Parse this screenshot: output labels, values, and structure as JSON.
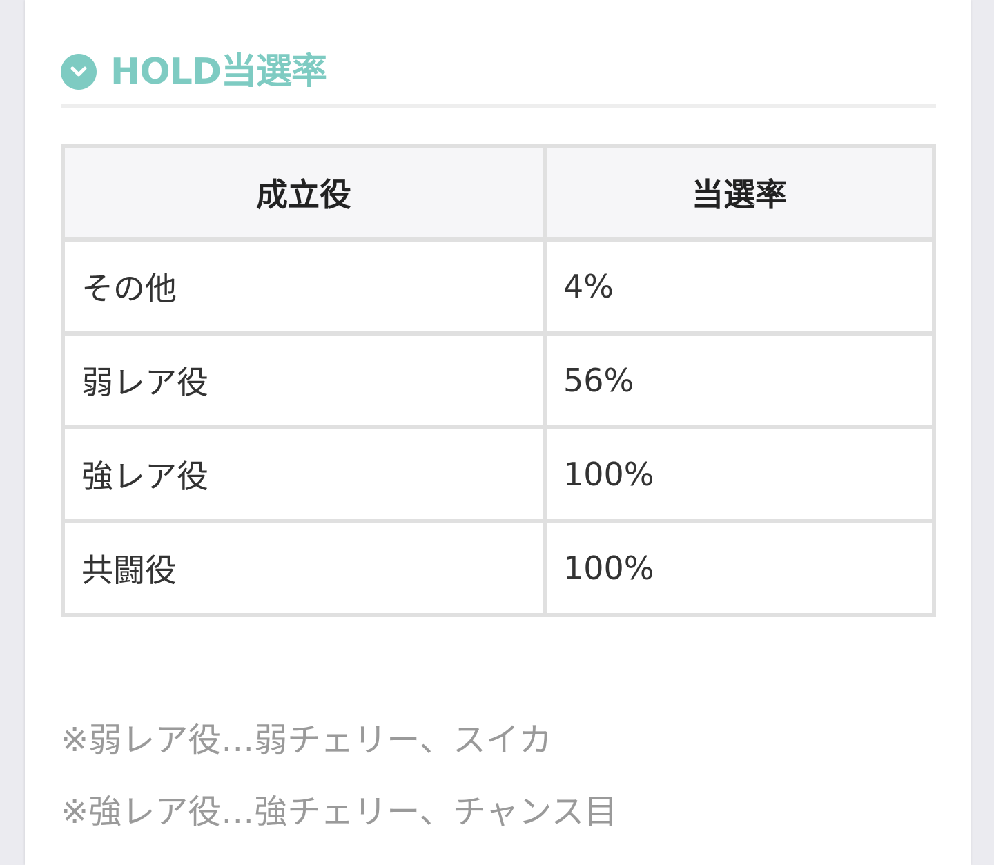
{
  "colors": {
    "accent": "#7ecbc2",
    "note_text": "#9a9a9a",
    "table_border": "#e0e0e0"
  },
  "heading": {
    "icon": "chevron-down-circle-icon",
    "title": "HOLD当選率"
  },
  "table": {
    "headers": [
      "成立役",
      "当選率"
    ],
    "rows": [
      {
        "role": "その他",
        "rate": "4%"
      },
      {
        "role": "弱レア役",
        "rate": "56%"
      },
      {
        "role": "強レア役",
        "rate": "100%"
      },
      {
        "role": "共闘役",
        "rate": "100%"
      }
    ]
  },
  "notes": [
    "※弱レア役…弱チェリー、スイカ",
    "※強レア役…強チェリー、チャンス目"
  ]
}
